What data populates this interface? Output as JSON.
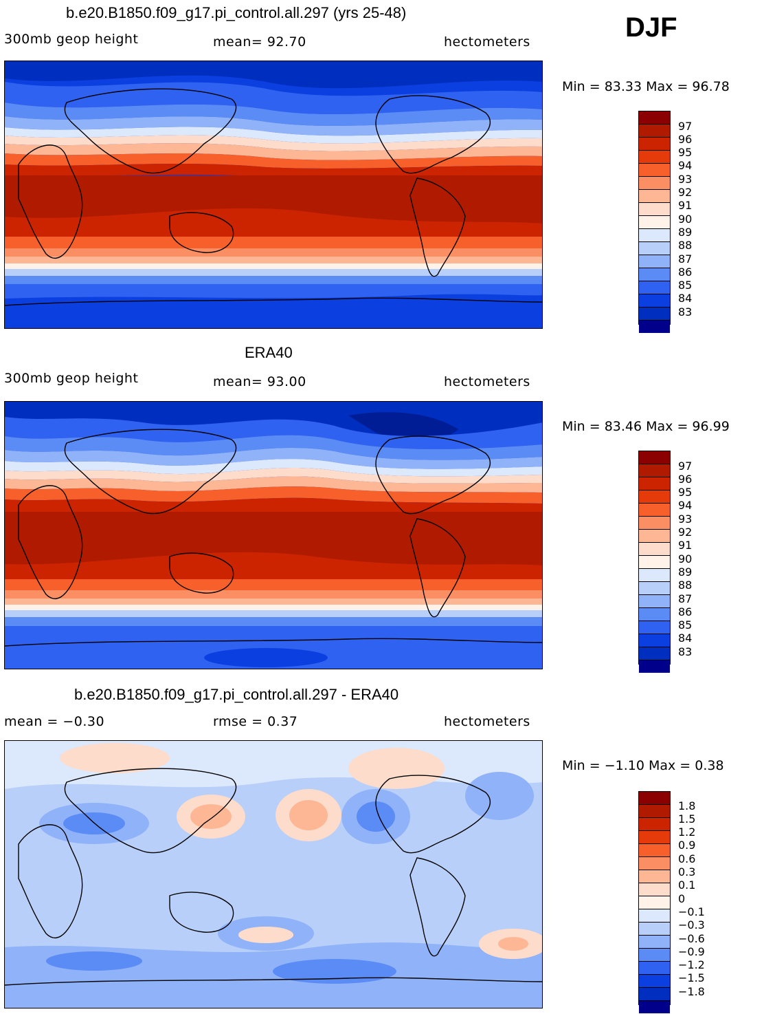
{
  "season": "DJF",
  "panels": [
    {
      "title": "b.e20.B1850.f09_g17.pi_control.all.297 (yrs 25-48)",
      "left_label": "300mb geop height",
      "center_label": "mean=  92.70",
      "right_label": "hectometers",
      "stats": "Min =  83.33 Max =  96.78",
      "colorbar_labels": [
        "97",
        "96",
        "95",
        "94",
        "93",
        "92",
        "91",
        "90",
        "89",
        "88",
        "87",
        "86",
        "85",
        "84",
        "83"
      ],
      "colorbar_colors": [
        "#8b0000",
        "#b01b00",
        "#cc2400",
        "#e53a0a",
        "#f7602a",
        "#fc8e63",
        "#fdb795",
        "#fddccb",
        "#fff2e8",
        "#dce8fb",
        "#b8cffa",
        "#8fb2f8",
        "#5b8bf5",
        "#2f62f0",
        "#0b3fe0",
        "#002fbf",
        "#001d96",
        "#00008b"
      ]
    },
    {
      "title": "ERA40",
      "left_label": "300mb geop height",
      "center_label": "mean=  93.00",
      "right_label": "hectometers",
      "stats": "Min =  83.46 Max =  96.99",
      "colorbar_labels": [
        "97",
        "96",
        "95",
        "94",
        "93",
        "92",
        "91",
        "90",
        "89",
        "88",
        "87",
        "86",
        "85",
        "84",
        "83"
      ]
    },
    {
      "title": "b.e20.B1850.f09_g17.pi_control.all.297 - ERA40",
      "left_label": "mean =  −0.30",
      "center_label": "rmse =    0.37",
      "right_label": "hectometers",
      "stats": "Min =  −1.10 Max =    0.38",
      "colorbar_labels": [
        "1.8",
        "1.5",
        "1.2",
        "0.9",
        "0.6",
        "0.3",
        "0.1",
        "0",
        "−0.1",
        "−0.3",
        "−0.6",
        "−0.9",
        "−1.2",
        "−1.5",
        "−1.8"
      ]
    }
  ]
}
